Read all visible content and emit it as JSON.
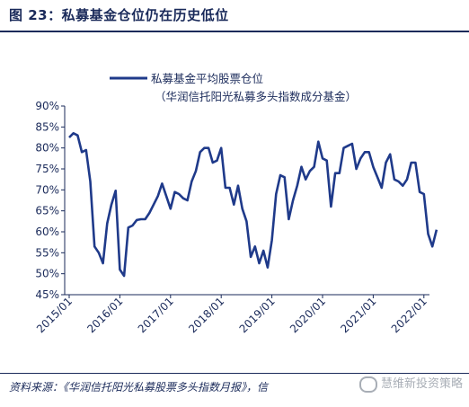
{
  "header": {
    "title": "图 23：私募基金仓位仍在历史低位"
  },
  "footer": {
    "source": "资料来源：《华润信托阳光私募股票多头指数月报》，信",
    "watermark": "慧维新投资策略"
  },
  "colors": {
    "line": "#1f3a8a",
    "text": "#1a2a5a"
  },
  "chart_data": {
    "type": "line",
    "title": "",
    "legend": [
      "私募基金平均股票仓位",
      "（华润信托阳光私募多头指数成分基金）"
    ],
    "legend_position": "top-center",
    "xlabel": "",
    "ylabel": "",
    "ylim": [
      45,
      90
    ],
    "yticks": [
      "45%",
      "50%",
      "55%",
      "60%",
      "65%",
      "70%",
      "75%",
      "80%",
      "85%",
      "90%"
    ],
    "xticks": [
      "2015/01",
      "2016/01",
      "2017/01",
      "2018/01",
      "2019/01",
      "2020/01",
      "2021/01",
      "2022/01"
    ],
    "grid": false,
    "series": [
      {
        "name": "私募基金平均股票仓位",
        "start": "2015/01",
        "frequency": "monthly",
        "values": [
          82.5,
          83.5,
          83,
          79,
          79.5,
          72,
          56.5,
          55,
          52.5,
          62,
          66.5,
          69.8,
          51,
          49.5,
          61,
          61.5,
          62.8,
          63,
          63,
          64.5,
          66.5,
          68.5,
          71.5,
          68.5,
          65.5,
          69.5,
          69,
          68,
          67.5,
          72,
          74.5,
          79,
          80,
          80,
          76.5,
          77,
          80,
          70.5,
          70.5,
          66.5,
          71,
          65.5,
          62.5,
          54,
          56.5,
          52.5,
          55.5,
          51.5,
          58,
          69,
          73.5,
          73,
          63,
          67.5,
          71,
          75.5,
          72.5,
          74.5,
          75.5,
          81.5,
          77.5,
          77,
          66,
          74,
          74,
          80,
          80.5,
          81,
          75,
          77.5,
          79,
          79,
          75.5,
          73,
          70.5,
          76.5,
          78.5,
          72.5,
          72,
          71,
          72.5,
          76.5,
          76.5,
          69.5,
          69,
          59.5,
          56.5,
          60.5
        ]
      }
    ]
  }
}
